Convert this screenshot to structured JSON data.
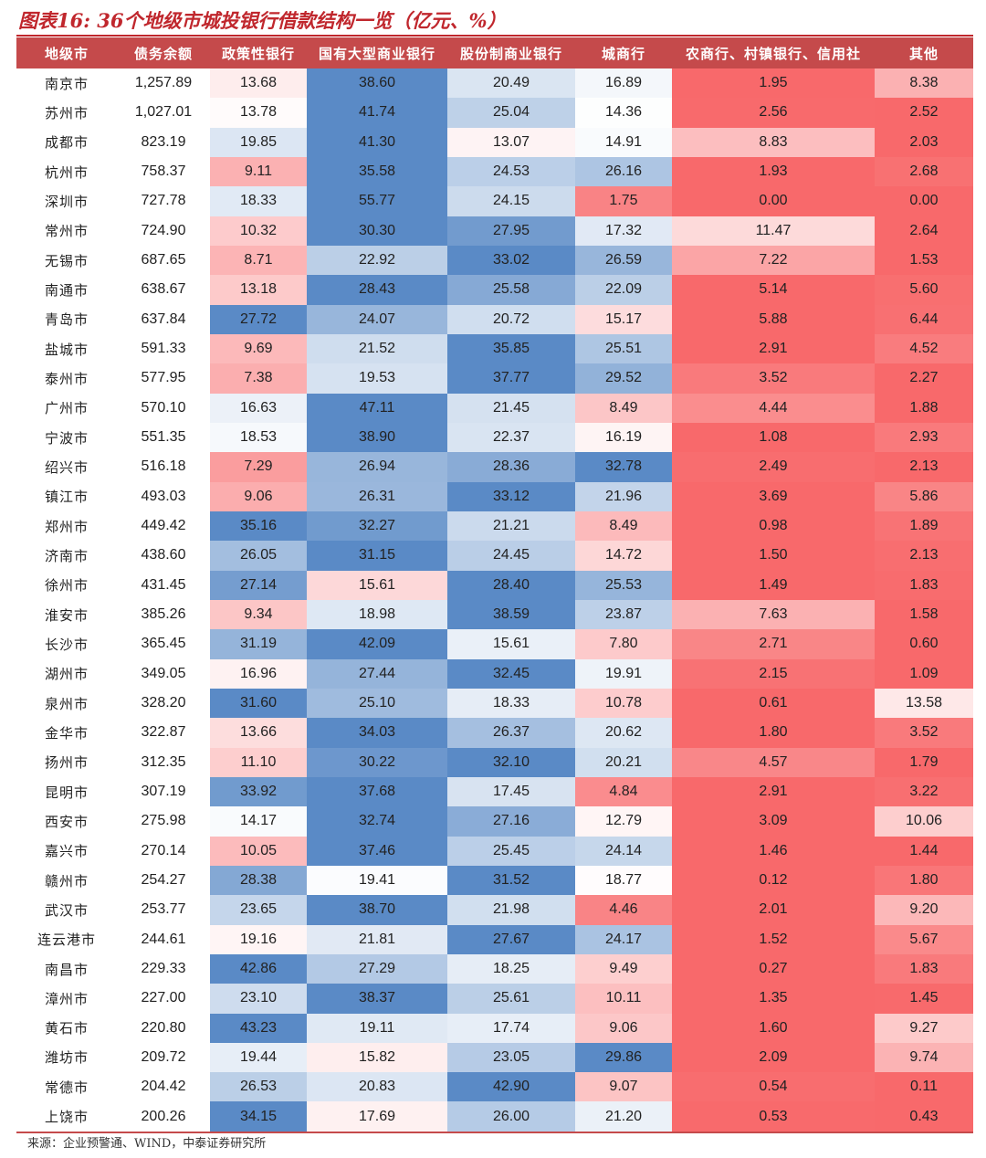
{
  "title": "图表16: 36个地级市城投银行借款结构一览（亿元、%）",
  "source": "来源：企业预警通、WIND，中泰证券研究所",
  "chart_data": {
    "type": "table",
    "title": "图表16: 36个地级市城投银行借款结构一览（亿元、%）",
    "columns": [
      "地级市",
      "债务余额",
      "政策性银行",
      "国有大型商业银行",
      "股份制商业银行",
      "城商行",
      "农商行、村镇银行、信用社",
      "其他"
    ],
    "rows": [
      [
        "南京市",
        "1,257.89",
        "13.68",
        "38.60",
        "20.49",
        "16.89",
        "1.95",
        "8.38"
      ],
      [
        "苏州市",
        "1,027.01",
        "13.78",
        "41.74",
        "25.04",
        "14.36",
        "2.56",
        "2.52"
      ],
      [
        "成都市",
        "823.19",
        "19.85",
        "41.30",
        "13.07",
        "14.91",
        "8.83",
        "2.03"
      ],
      [
        "杭州市",
        "758.37",
        "9.11",
        "35.58",
        "24.53",
        "26.16",
        "1.93",
        "2.68"
      ],
      [
        "深圳市",
        "727.78",
        "18.33",
        "55.77",
        "24.15",
        "1.75",
        "0.00",
        "0.00"
      ],
      [
        "常州市",
        "724.90",
        "10.32",
        "30.30",
        "27.95",
        "17.32",
        "11.47",
        "2.64"
      ],
      [
        "无锡市",
        "687.65",
        "8.71",
        "22.92",
        "33.02",
        "26.59",
        "7.22",
        "1.53"
      ],
      [
        "南通市",
        "638.67",
        "13.18",
        "28.43",
        "25.58",
        "22.09",
        "5.14",
        "5.60"
      ],
      [
        "青岛市",
        "637.84",
        "27.72",
        "24.07",
        "20.72",
        "15.17",
        "5.88",
        "6.44"
      ],
      [
        "盐城市",
        "591.33",
        "9.69",
        "21.52",
        "35.85",
        "25.51",
        "2.91",
        "4.52"
      ],
      [
        "泰州市",
        "577.95",
        "7.38",
        "19.53",
        "37.77",
        "29.52",
        "3.52",
        "2.27"
      ],
      [
        "广州市",
        "570.10",
        "16.63",
        "47.11",
        "21.45",
        "8.49",
        "4.44",
        "1.88"
      ],
      [
        "宁波市",
        "551.35",
        "18.53",
        "38.90",
        "22.37",
        "16.19",
        "1.08",
        "2.93"
      ],
      [
        "绍兴市",
        "516.18",
        "7.29",
        "26.94",
        "28.36",
        "32.78",
        "2.49",
        "2.13"
      ],
      [
        "镇江市",
        "493.03",
        "9.06",
        "26.31",
        "33.12",
        "21.96",
        "3.69",
        "5.86"
      ],
      [
        "郑州市",
        "449.42",
        "35.16",
        "32.27",
        "21.21",
        "8.49",
        "0.98",
        "1.89"
      ],
      [
        "济南市",
        "438.60",
        "26.05",
        "31.15",
        "24.45",
        "14.72",
        "1.50",
        "2.13"
      ],
      [
        "徐州市",
        "431.45",
        "27.14",
        "15.61",
        "28.40",
        "25.53",
        "1.49",
        "1.83"
      ],
      [
        "淮安市",
        "385.26",
        "9.34",
        "18.98",
        "38.59",
        "23.87",
        "7.63",
        "1.58"
      ],
      [
        "长沙市",
        "365.45",
        "31.19",
        "42.09",
        "15.61",
        "7.80",
        "2.71",
        "0.60"
      ],
      [
        "湖州市",
        "349.05",
        "16.96",
        "27.44",
        "32.45",
        "19.91",
        "2.15",
        "1.09"
      ],
      [
        "泉州市",
        "328.20",
        "31.60",
        "25.10",
        "18.33",
        "10.78",
        "0.61",
        "13.58"
      ],
      [
        "金华市",
        "322.87",
        "13.66",
        "34.03",
        "26.37",
        "20.62",
        "1.80",
        "3.52"
      ],
      [
        "扬州市",
        "312.35",
        "11.10",
        "30.22",
        "32.10",
        "20.21",
        "4.57",
        "1.79"
      ],
      [
        "昆明市",
        "307.19",
        "33.92",
        "37.68",
        "17.45",
        "4.84",
        "2.91",
        "3.22"
      ],
      [
        "西安市",
        "275.98",
        "14.17",
        "32.74",
        "27.16",
        "12.79",
        "3.09",
        "10.06"
      ],
      [
        "嘉兴市",
        "270.14",
        "10.05",
        "37.46",
        "25.45",
        "24.14",
        "1.46",
        "1.44"
      ],
      [
        "赣州市",
        "254.27",
        "28.38",
        "19.41",
        "31.52",
        "18.77",
        "0.12",
        "1.80"
      ],
      [
        "武汉市",
        "253.77",
        "23.65",
        "38.70",
        "21.98",
        "4.46",
        "2.01",
        "9.20"
      ],
      [
        "连云港市",
        "244.61",
        "19.16",
        "21.81",
        "27.67",
        "24.17",
        "1.52",
        "5.67"
      ],
      [
        "南昌市",
        "229.33",
        "42.86",
        "27.29",
        "18.25",
        "9.49",
        "0.27",
        "1.83"
      ],
      [
        "漳州市",
        "227.00",
        "23.10",
        "38.37",
        "25.61",
        "10.11",
        "1.35",
        "1.45"
      ],
      [
        "黄石市",
        "220.80",
        "43.23",
        "19.11",
        "17.74",
        "9.06",
        "1.60",
        "9.27"
      ],
      [
        "潍坊市",
        "209.72",
        "19.44",
        "15.82",
        "23.05",
        "29.86",
        "2.09",
        "9.74"
      ],
      [
        "常德市",
        "204.42",
        "26.53",
        "20.83",
        "42.90",
        "9.07",
        "0.54",
        "0.11"
      ],
      [
        "上饶市",
        "200.26",
        "34.15",
        "17.69",
        "26.00",
        "21.20",
        "0.53",
        "0.43"
      ]
    ],
    "colors": {
      "header_bg": "#c54a4b",
      "title": "#c0272d",
      "low": "#f8696b",
      "mid": "#ffffff",
      "high": "#5a8ac6"
    }
  }
}
